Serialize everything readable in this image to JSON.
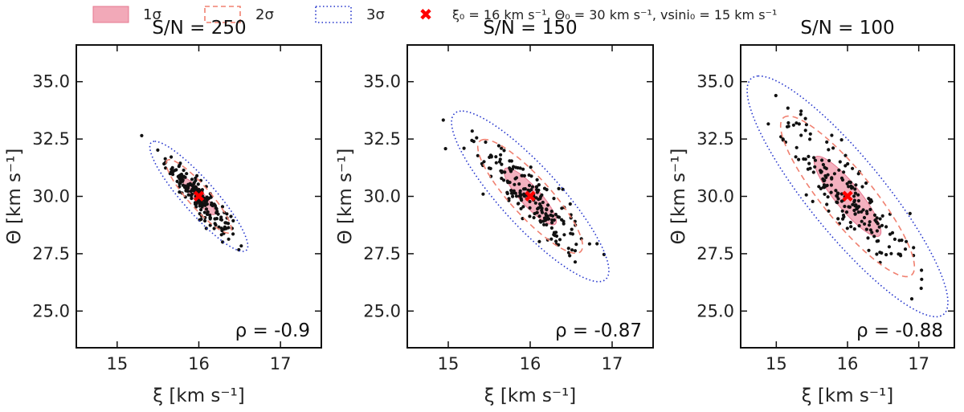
{
  "legend": {
    "sigma1": "1σ",
    "sigma2": "2σ",
    "sigma3": "3σ",
    "truth": "ξ₀ = 16 km s⁻¹, Θ₀ = 30 km s⁻¹, vsini₀ = 15 km s⁻¹"
  },
  "colors": {
    "fill1": "#f2a9b8",
    "edge1": "#e6788f",
    "ellipse2": "#f08070",
    "ellipse3": "#2233cc",
    "points": "#111111",
    "truth": "#ff0000"
  },
  "chart_data": [
    {
      "type": "scatter",
      "title": "S/N = 250",
      "xlabel": "ξ [km s⁻¹]",
      "ylabel": "Θ [km s⁻¹]",
      "xlim": [
        14.5,
        17.5
      ],
      "ylim": [
        23.4,
        36.6
      ],
      "xticks": [
        15,
        16,
        17
      ],
      "xtick_labels": [
        "15",
        "16",
        "17"
      ],
      "yticks": [
        25.0,
        27.5,
        30.0,
        32.5,
        35.0
      ],
      "ytick_labels": [
        "25.0",
        "27.5",
        "30.0",
        "32.5",
        "35.0"
      ],
      "rho_label": "ρ = -0.9",
      "rho": -0.9,
      "center": [
        16,
        30
      ],
      "sigma_x": 0.2,
      "sigma_y": 0.8,
      "n_points": 200,
      "truth": [
        16,
        30
      ]
    },
    {
      "type": "scatter",
      "title": "S/N = 150",
      "xlabel": "ξ [km s⁻¹]",
      "ylabel": "Θ [km s⁻¹]",
      "xlim": [
        14.5,
        17.5
      ],
      "ylim": [
        23.4,
        36.6
      ],
      "xticks": [
        15,
        16,
        17
      ],
      "xtick_labels": [
        "15",
        "16",
        "17"
      ],
      "yticks": [
        25.0,
        27.5,
        30.0,
        32.5,
        35.0
      ],
      "ytick_labels": [
        "25.0",
        "27.5",
        "30.0",
        "32.5",
        "35.0"
      ],
      "rho_label": "ρ = -0.87",
      "rho": -0.87,
      "center": [
        16,
        30
      ],
      "sigma_x": 0.32,
      "sigma_y": 1.24,
      "n_points": 200,
      "truth": [
        16,
        30
      ]
    },
    {
      "type": "scatter",
      "title": "S/N = 100",
      "xlabel": "ξ [km s⁻¹]",
      "ylabel": "Θ [km s⁻¹]",
      "xlim": [
        14.5,
        17.5
      ],
      "ylim": [
        23.4,
        36.6
      ],
      "xticks": [
        15,
        16,
        17
      ],
      "xtick_labels": [
        "15",
        "16",
        "17"
      ],
      "yticks": [
        25.0,
        27.5,
        30.0,
        32.5,
        35.0
      ],
      "ytick_labels": [
        "25.0",
        "27.5",
        "30.0",
        "32.5",
        "35.0"
      ],
      "rho_label": "ρ = -0.88",
      "rho": -0.88,
      "center": [
        16,
        30
      ],
      "sigma_x": 0.47,
      "sigma_y": 1.75,
      "n_points": 200,
      "truth": [
        16,
        30
      ]
    }
  ]
}
